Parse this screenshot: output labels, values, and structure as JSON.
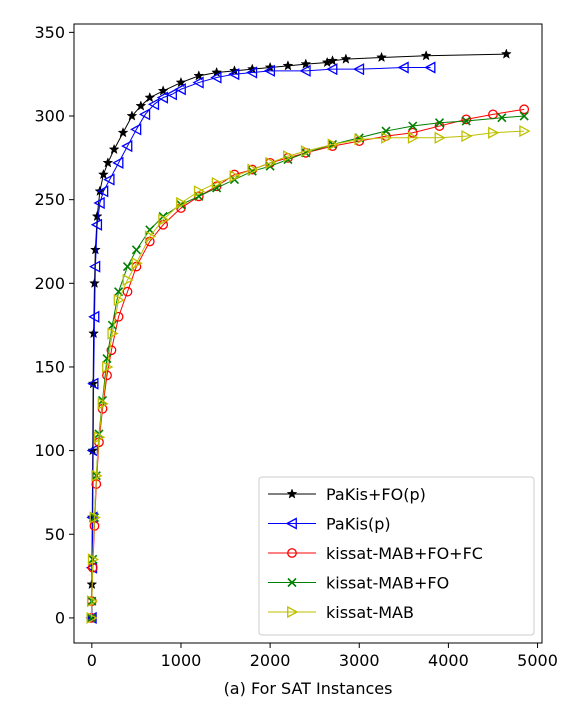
{
  "chart_data": {
    "type": "line",
    "xlabel": "(a) For SAT Instances",
    "ylabel": "",
    "xlim": [
      -200,
      5050
    ],
    "ylim": [
      -15,
      355
    ],
    "xticks": [
      0,
      1000,
      2000,
      3000,
      4000,
      5000
    ],
    "yticks": [
      0,
      50,
      100,
      150,
      200,
      250,
      300,
      350
    ],
    "xtick_labels": [
      "0",
      "1000",
      "2000",
      "3000",
      "4000",
      "5000"
    ],
    "ytick_labels": [
      "0",
      "50",
      "100",
      "150",
      "200",
      "250",
      "300",
      "350"
    ],
    "grid": false,
    "legend_position": "lower-right",
    "series": [
      {
        "name": "PaKis+FO(p)",
        "color": "#000000",
        "marker": "star",
        "points": [
          [
            -5,
            0
          ],
          [
            0,
            20
          ],
          [
            5,
            60
          ],
          [
            10,
            100
          ],
          [
            15,
            140
          ],
          [
            20,
            170
          ],
          [
            30,
            200
          ],
          [
            40,
            220
          ],
          [
            60,
            240
          ],
          [
            90,
            255
          ],
          [
            130,
            265
          ],
          [
            180,
            272
          ],
          [
            250,
            280
          ],
          [
            350,
            290
          ],
          [
            450,
            300
          ],
          [
            550,
            306
          ],
          [
            650,
            311
          ],
          [
            800,
            315
          ],
          [
            1000,
            320
          ],
          [
            1200,
            324
          ],
          [
            1400,
            326
          ],
          [
            1600,
            327
          ],
          [
            1800,
            328
          ],
          [
            2000,
            329
          ],
          [
            2200,
            330
          ],
          [
            2400,
            331
          ],
          [
            2640,
            332
          ],
          [
            2700,
            333
          ],
          [
            2850,
            334
          ],
          [
            3250,
            335
          ],
          [
            3750,
            336
          ],
          [
            4650,
            337
          ]
        ]
      },
      {
        "name": "PaKis(p)",
        "color": "#0000ff",
        "marker": "triangle-left",
        "points": [
          [
            0,
            0
          ],
          [
            5,
            30
          ],
          [
            10,
            60
          ],
          [
            15,
            100
          ],
          [
            20,
            140
          ],
          [
            30,
            180
          ],
          [
            40,
            210
          ],
          [
            60,
            235
          ],
          [
            90,
            248
          ],
          [
            130,
            255
          ],
          [
            200,
            262
          ],
          [
            300,
            272
          ],
          [
            400,
            282
          ],
          [
            500,
            292
          ],
          [
            600,
            301
          ],
          [
            700,
            307
          ],
          [
            800,
            311
          ],
          [
            900,
            313
          ],
          [
            1000,
            316
          ],
          [
            1200,
            320
          ],
          [
            1400,
            323
          ],
          [
            1600,
            325
          ],
          [
            1800,
            326
          ],
          [
            2000,
            327
          ],
          [
            2400,
            327
          ],
          [
            2700,
            328
          ],
          [
            3000,
            328
          ],
          [
            3500,
            329
          ],
          [
            3800,
            329
          ]
        ]
      },
      {
        "name": "kissat-MAB+FO+FC",
        "color": "#ff0000",
        "marker": "circle",
        "points": [
          [
            -5,
            0
          ],
          [
            0,
            10
          ],
          [
            10,
            30
          ],
          [
            30,
            55
          ],
          [
            50,
            80
          ],
          [
            80,
            105
          ],
          [
            120,
            125
          ],
          [
            170,
            145
          ],
          [
            220,
            160
          ],
          [
            300,
            180
          ],
          [
            400,
            195
          ],
          [
            500,
            210
          ],
          [
            650,
            225
          ],
          [
            800,
            235
          ],
          [
            1000,
            245
          ],
          [
            1200,
            252
          ],
          [
            1400,
            258
          ],
          [
            1600,
            265
          ],
          [
            1800,
            268
          ],
          [
            2000,
            272
          ],
          [
            2200,
            275
          ],
          [
            2400,
            278
          ],
          [
            2700,
            282
          ],
          [
            3000,
            285
          ],
          [
            3300,
            288
          ],
          [
            3600,
            290
          ],
          [
            3900,
            294
          ],
          [
            4200,
            298
          ],
          [
            4500,
            301
          ],
          [
            4850,
            304
          ]
        ]
      },
      {
        "name": "kissat-MAB+FO",
        "color": "#008000",
        "marker": "x",
        "points": [
          [
            -5,
            0
          ],
          [
            0,
            10
          ],
          [
            10,
            35
          ],
          [
            30,
            60
          ],
          [
            50,
            85
          ],
          [
            80,
            110
          ],
          [
            120,
            130
          ],
          [
            170,
            155
          ],
          [
            230,
            175
          ],
          [
            300,
            195
          ],
          [
            400,
            210
          ],
          [
            500,
            220
          ],
          [
            650,
            232
          ],
          [
            800,
            240
          ],
          [
            1000,
            247
          ],
          [
            1200,
            252
          ],
          [
            1400,
            257
          ],
          [
            1600,
            262
          ],
          [
            1800,
            267
          ],
          [
            2000,
            270
          ],
          [
            2200,
            274
          ],
          [
            2400,
            278
          ],
          [
            2700,
            283
          ],
          [
            3000,
            287
          ],
          [
            3300,
            291
          ],
          [
            3600,
            294
          ],
          [
            3900,
            296
          ],
          [
            4200,
            297
          ],
          [
            4600,
            299
          ],
          [
            4850,
            300
          ]
        ]
      },
      {
        "name": "kissat-MAB",
        "color": "#bfbf00",
        "marker": "triangle-right",
        "points": [
          [
            -5,
            0
          ],
          [
            0,
            10
          ],
          [
            10,
            35
          ],
          [
            30,
            60
          ],
          [
            50,
            85
          ],
          [
            80,
            108
          ],
          [
            120,
            128
          ],
          [
            170,
            150
          ],
          [
            230,
            170
          ],
          [
            300,
            190
          ],
          [
            400,
            202
          ],
          [
            500,
            212
          ],
          [
            650,
            228
          ],
          [
            800,
            238
          ],
          [
            1000,
            248
          ],
          [
            1200,
            255
          ],
          [
            1400,
            260
          ],
          [
            1600,
            264
          ],
          [
            1800,
            268
          ],
          [
            2000,
            272
          ],
          [
            2200,
            276
          ],
          [
            2400,
            279
          ],
          [
            2700,
            283
          ],
          [
            3000,
            286
          ],
          [
            3300,
            287
          ],
          [
            3600,
            287
          ],
          [
            3900,
            287
          ],
          [
            4200,
            288
          ],
          [
            4500,
            290
          ],
          [
            4850,
            291
          ]
        ]
      }
    ]
  }
}
